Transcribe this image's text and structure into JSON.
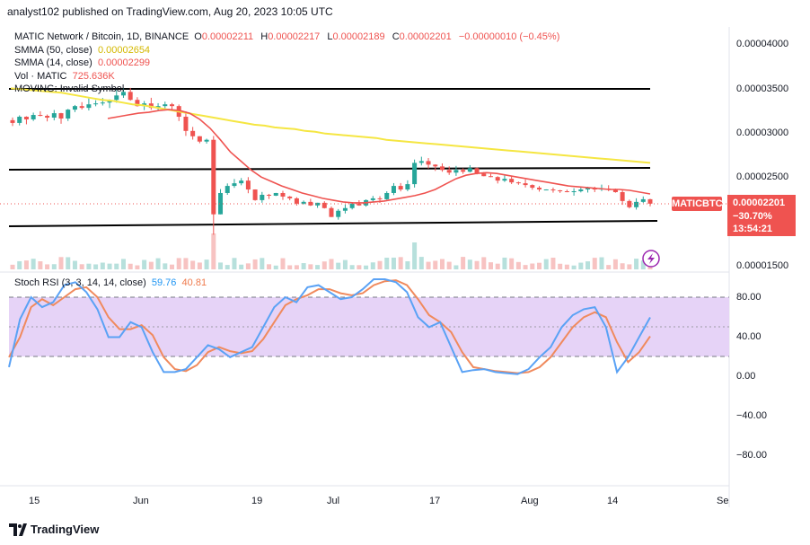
{
  "header": {
    "publisher_line": "analyst102 published on TradingView.com, Aug 20, 2023 10:05 UTC"
  },
  "legend": {
    "title": "MATIC Network / Bitcoin, 1D, BINANCE",
    "o_label": "O",
    "o_value": "0.00002211",
    "h_label": "H",
    "h_value": "0.00002217",
    "l_label": "L",
    "l_value": "0.00002189",
    "c_label": "C",
    "c_value": "0.00002201",
    "change": "−0.00000010 (−0.45%)",
    "sma50_label": "SMMA (50, close)",
    "sma50_value": "0.00002654",
    "sma14_label": "SMMA (14, close)",
    "sma14_value": "0.00002299",
    "vol_label": "Vol · MATIC",
    "vol_value": "725.636K",
    "moving_label": "MOVING: Invalid Symbol"
  },
  "stoch": {
    "label": "Stoch RSI (3, 3, 14, 14, close)",
    "k_value": "59.76",
    "d_value": "40.81"
  },
  "price_box": {
    "symbol": "MATICBTC",
    "price": "0.00002201",
    "change_pct": "−30.70%",
    "countdown": "13:54:21"
  },
  "price_ticks": [
    "0.00004000",
    "0.00003500",
    "0.00003000",
    "0.00002500",
    "0.00001500"
  ],
  "stoch_ticks": [
    "80.00",
    "40.00",
    "0.00",
    "−40.00",
    "−80.00"
  ],
  "time_ticks": [
    "15",
    "Jun",
    "19",
    "Jul",
    "17",
    "Aug",
    "14",
    "Se"
  ],
  "footer": {
    "brand": "TradingView"
  },
  "colors": {
    "up": "#26a69a",
    "down": "#ef5350",
    "sma50": "#f5e642",
    "sma14": "#ef5350",
    "stoch_k": "#5aa2f5",
    "stoch_d": "#f08a5d",
    "stoch_band": "#e6d3f7"
  },
  "chart_data": {
    "type": "candlestick",
    "price_range": [
      1.45e-05,
      4.15e-05
    ],
    "closes": [
      3.11e-05,
      3.18e-05,
      3.15e-05,
      3.2e-05,
      3.19e-05,
      3.17e-05,
      3.22e-05,
      3.16e-05,
      3.26e-05,
      3.3e-05,
      3.28e-05,
      3.32e-05,
      3.33e-05,
      3.34e-05,
      3.37e-05,
      3.42e-05,
      3.46e-05,
      3.37e-05,
      3.3e-05,
      3.33e-05,
      3.28e-05,
      3.3e-05,
      3.32e-05,
      3.3e-05,
      3.18e-05,
      3.02e-05,
      2.96e-05,
      2.9e-05,
      2.92e-05,
      2.08e-05,
      2.32e-05,
      2.4e-05,
      2.43e-05,
      2.46e-05,
      2.36e-05,
      2.24e-05,
      2.3e-05,
      2.29e-05,
      2.32e-05,
      2.28e-05,
      2.26e-05,
      2.2e-05,
      2.22e-05,
      2.18e-05,
      2.21e-05,
      2.15e-05,
      2.05e-05,
      2.12e-05,
      2.15e-05,
      2.2e-05,
      2.18e-05,
      2.24e-05,
      2.26e-05,
      2.25e-05,
      2.32e-05,
      2.4e-05,
      2.36e-05,
      2.42e-05,
      2.66e-05,
      2.68e-05,
      2.64e-05,
      2.62e-05,
      2.58e-05,
      2.55e-05,
      2.58e-05,
      2.56e-05,
      2.6e-05,
      2.54e-05,
      2.51e-05,
      2.5e-05,
      2.46e-05,
      2.48e-05,
      2.44e-05,
      2.43e-05,
      2.41e-05,
      2.38e-05,
      2.36e-05,
      2.36e-05,
      2.35e-05,
      2.34e-05,
      2.33e-05,
      2.34e-05,
      2.36e-05,
      2.38e-05,
      2.36e-05,
      2.37e-05,
      2.36e-05,
      2.33e-05,
      2.23e-05,
      2.16e-05,
      2.22e-05,
      2.25e-05,
      2.2e-05
    ],
    "sma50": [
      3.5e-05,
      3.49e-05,
      3.48e-05,
      3.47e-05,
      3.46e-05,
      3.45e-05,
      3.43e-05,
      3.41e-05,
      3.39e-05,
      3.37e-05,
      3.36e-05,
      3.34e-05,
      3.32e-05,
      3.31e-05,
      3.29e-05,
      3.27e-05,
      3.25e-05,
      3.23e-05,
      3.21e-05,
      3.19e-05,
      3.17e-05,
      3.15e-05,
      3.13e-05,
      3.11e-05,
      3.09e-05,
      3.08e-05,
      3.06e-05,
      3.05e-05,
      3.04e-05,
      3.02e-05,
      3.01e-05,
      2.99e-05,
      2.98e-05,
      2.97e-05,
      2.96e-05,
      2.95e-05,
      2.94e-05,
      2.92e-05,
      2.91e-05,
      2.9e-05,
      2.89e-05,
      2.88e-05,
      2.87e-05,
      2.86e-05,
      2.85e-05,
      2.84e-05,
      2.83e-05,
      2.82e-05,
      2.81e-05,
      2.8e-05,
      2.79e-05,
      2.78e-05,
      2.77e-05,
      2.76e-05,
      2.75e-05,
      2.74e-05,
      2.73e-05,
      2.72e-05,
      2.71e-05,
      2.7e-05,
      2.69e-05,
      2.68e-05,
      2.67e-05,
      2.66e-05
    ],
    "sma14": [
      3.16e-05,
      3.18e-05,
      3.2e-05,
      3.22e-05,
      3.23e-05,
      3.25e-05,
      3.26e-05,
      3.25e-05,
      3.22e-05,
      3.15e-05,
      3.05e-05,
      2.92e-05,
      2.78e-05,
      2.68e-05,
      2.58e-05,
      2.5e-05,
      2.45e-05,
      2.4e-05,
      2.36e-05,
      2.32e-05,
      2.29e-05,
      2.26e-05,
      2.24e-05,
      2.22e-05,
      2.21e-05,
      2.21e-05,
      2.22e-05,
      2.23e-05,
      2.25e-05,
      2.27e-05,
      2.29e-05,
      2.32e-05,
      2.36e-05,
      2.42e-05,
      2.48e-05,
      2.52e-05,
      2.54e-05,
      2.55e-05,
      2.54e-05,
      2.52e-05,
      2.5e-05,
      2.48e-05,
      2.46e-05,
      2.44e-05,
      2.42e-05,
      2.4e-05,
      2.39e-05,
      2.38e-05,
      2.37e-05,
      2.36e-05,
      2.36e-05,
      2.35e-05,
      2.33e-05,
      2.31e-05
    ],
    "support": 2.05e-05,
    "resistance_top": 3.5e-05,
    "resistance_mid": 2.6e-05,
    "stoch_k": [
      10,
      58,
      80,
      70,
      75,
      92,
      95,
      85,
      68,
      40,
      40,
      55,
      50,
      25,
      5,
      5,
      8,
      20,
      32,
      28,
      20,
      25,
      30,
      50,
      70,
      80,
      75,
      90,
      92,
      85,
      78,
      80,
      88,
      98,
      98,
      95,
      85,
      60,
      50,
      55,
      30,
      5,
      7,
      8,
      5,
      4,
      3,
      8,
      20,
      30,
      50,
      62,
      68,
      70,
      50,
      5,
      20,
      40,
      59.76
    ],
    "stoch_d": [
      20,
      40,
      70,
      78,
      72,
      80,
      88,
      90,
      80,
      60,
      48,
      48,
      52,
      42,
      20,
      8,
      6,
      12,
      25,
      30,
      26,
      24,
      26,
      38,
      55,
      72,
      78,
      82,
      88,
      88,
      84,
      82,
      84,
      92,
      96,
      97,
      92,
      78,
      62,
      55,
      45,
      25,
      10,
      8,
      6,
      5,
      4,
      5,
      10,
      20,
      35,
      50,
      60,
      65,
      60,
      35,
      15,
      25,
      40.81
    ]
  }
}
